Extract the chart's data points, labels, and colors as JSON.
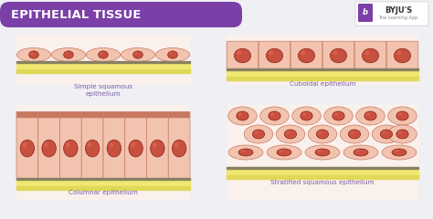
{
  "title": "EPITHELIAL TISSUE",
  "title_bg": "#7b3fa8",
  "title_color": "#ffffff",
  "bg_color": "#f0eff4",
  "label_color": "#7b5ea7",
  "labels": [
    "Simple squamous\nepithelium",
    "Cuboidal epithelium",
    "Columnar epithelium",
    "Stratified squamous epithelium"
  ],
  "cell_fill": "#f2c4b0",
  "cell_stroke": "#c87860",
  "nucleus_fill": "#c85040",
  "nucleus_stroke": "#8b2010",
  "base_yellow": "#f0e870",
  "base_dark": "#888060",
  "panel_bg": "#faf0ec"
}
